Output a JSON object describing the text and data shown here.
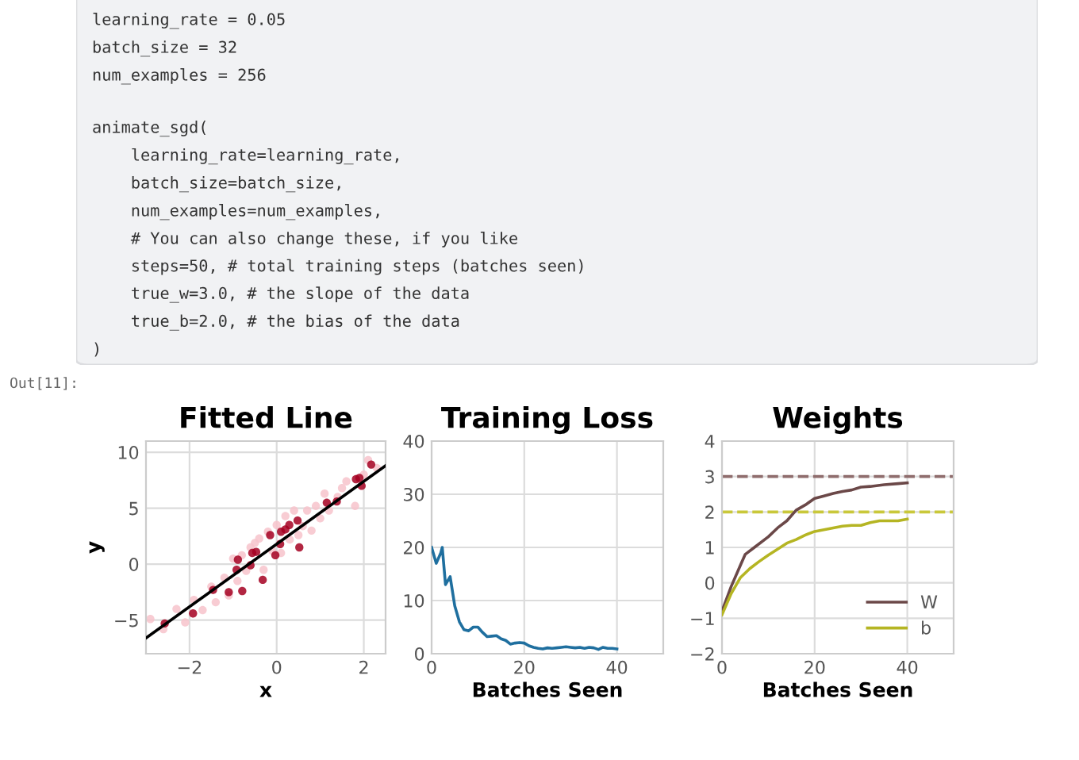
{
  "chart_data": [
    {
      "type": "other",
      "annotations": [
        "learning_rate = 0.05\nbatch_size = 32\nnum_examples = 256",
        "animate_sgd(\n    learning_rate=learning_rate,\n    batch_size=batch_size,\n    num_examples=num_examples,\n    # You can also change these, if you like\n    steps=50, # total training steps (batches seen)\n    true_w=3.0, # the slope of the data\n    true_b=2.0, # the bias of the data\n)"
      ]
    },
    {
      "type": "scatter",
      "title": "Fitted Line",
      "xlabel": "x",
      "ylabel": "y",
      "annotations": [
        "Out[11]:"
      ],
      "xlim": [
        -3,
        2.5
      ],
      "ylim": [
        -8,
        11
      ],
      "xticks": [
        -2,
        0,
        2
      ],
      "yticks": [
        -5,
        0,
        5,
        10
      ],
      "grid": true,
      "legend": false,
      "marker": "circle",
      "series": [
        {
          "color": "#f7c3cb",
          "x": [
            -2.9,
            -2.6,
            -2.3,
            -2.1,
            -1.9,
            -1.7,
            -1.5,
            -1.4,
            -1.2,
            -1.1,
            -1.0,
            -0.9,
            -0.8,
            -0.7,
            -0.6,
            -0.5,
            -0.4,
            -0.3,
            -0.2,
            -0.1,
            0.0,
            0.1,
            0.2,
            0.3,
            0.4,
            0.5,
            0.6,
            0.7,
            0.8,
            0.9,
            1.0,
            1.1,
            1.2,
            1.4,
            1.5,
            1.6,
            1.8,
            2.0,
            2.1,
            2.3
          ],
          "values": [
            -4.9,
            -5.8,
            -4.0,
            -5.2,
            -3.2,
            -4.1,
            -2.0,
            -3.4,
            -1.2,
            -2.8,
            0.5,
            -1.5,
            0.8,
            -0.6,
            1.5,
            1.9,
            2.3,
            -0.5,
            2.9,
            1.2,
            3.5,
            1.0,
            4.3,
            2.2,
            4.8,
            2.6,
            3.4,
            4.8,
            3.0,
            5.2,
            4.1,
            6.3,
            4.8,
            6.0,
            6.8,
            7.4,
            5.2,
            8.0,
            9.3,
            8.6
          ]
        },
        {
          "color": "#a50021",
          "x": [
            2.17,
            1.9,
            1.95,
            1.82,
            1.15,
            1.38,
            0.48,
            0.29,
            0.2,
            0.1,
            -0.15,
            0.08,
            0.52,
            -0.03,
            -0.47,
            -0.56,
            -0.32,
            -0.89,
            -0.92,
            -0.79,
            -1.1,
            -1.46,
            -1.92,
            -2.57,
            -0.6
          ],
          "values": [
            8.9,
            7.7,
            7.0,
            7.6,
            5.5,
            5.6,
            3.9,
            3.5,
            3.1,
            2.9,
            2.6,
            1.8,
            1.5,
            0.8,
            1.1,
            1.0,
            -1.4,
            0.4,
            -0.5,
            -2.4,
            -2.5,
            -2.3,
            -4.4,
            -5.3,
            -0.1
          ]
        },
        {
          "type": "line",
          "marker": "none",
          "color": "#000000",
          "x": [
            -3,
            2.5
          ],
          "values": [
            -6.6,
            8.8
          ]
        }
      ]
    },
    {
      "type": "line",
      "title": "Training Loss",
      "xlabel": "Batches Seen",
      "xlim": [
        0,
        50
      ],
      "ylim": [
        0,
        40
      ],
      "xticks": [
        0,
        20,
        40
      ],
      "yticks": [
        0,
        10,
        20,
        30,
        40
      ],
      "grid": true,
      "legend": false,
      "marker": "none",
      "line_style": "solid",
      "series": [
        {
          "color": "#1f6f9f",
          "x": [
            0,
            1,
            2,
            2.3,
            3,
            4,
            5,
            6,
            7,
            8,
            9,
            10,
            11,
            12,
            13,
            14,
            15,
            16,
            17,
            18,
            19,
            20,
            21,
            22,
            23,
            24,
            25,
            26,
            27,
            28,
            29,
            30,
            31,
            32,
            33,
            34,
            35,
            36,
            37,
            38,
            39,
            40
          ],
          "values": [
            20,
            17,
            19,
            20,
            13,
            14.5,
            9,
            6,
            4.5,
            4.3,
            5,
            5,
            4,
            3.2,
            3.3,
            3.4,
            2.8,
            2.5,
            1.8,
            2,
            2.1,
            2,
            1.5,
            1.2,
            1,
            0.9,
            1.1,
            1,
            1.1,
            1.2,
            1.3,
            1.2,
            1.1,
            1.2,
            1,
            1.2,
            1.1,
            0.8,
            1.2,
            1,
            1,
            0.9
          ]
        }
      ]
    },
    {
      "type": "line",
      "title": "Weights",
      "xlabel": "Batches Seen",
      "xlim": [
        0,
        50
      ],
      "ylim": [
        -2,
        4
      ],
      "xticks": [
        0,
        20,
        40
      ],
      "yticks": [
        -2,
        -1,
        0,
        1,
        2,
        3,
        4
      ],
      "grid": true,
      "legend": "bottom right",
      "marker": "none",
      "line_style": "solid",
      "ref_lines": [
        {
          "axis": "y",
          "value": 3,
          "color": "#8f6d6d",
          "line_style": "dashed"
        },
        {
          "axis": "y",
          "value": 2,
          "color": "#c9c83a",
          "line_style": "dashed"
        }
      ],
      "series": [
        {
          "name": "W",
          "color": "#6b4848",
          "x": [
            0,
            2,
            4,
            5,
            7,
            10,
            12,
            14,
            16,
            18,
            20,
            22,
            24,
            26,
            28,
            30,
            32,
            35,
            38,
            40
          ],
          "values": [
            -0.8,
            -0.1,
            0.5,
            0.8,
            1.0,
            1.3,
            1.55,
            1.75,
            2.05,
            2.2,
            2.38,
            2.45,
            2.52,
            2.58,
            2.62,
            2.7,
            2.72,
            2.77,
            2.8,
            2.82
          ]
        },
        {
          "name": "b",
          "color": "#b5b523",
          "x": [
            0,
            2,
            4,
            6,
            8,
            10,
            12,
            14,
            16,
            18,
            20,
            22,
            24,
            26,
            28,
            30,
            32,
            34,
            36,
            38,
            40
          ],
          "values": [
            -0.9,
            -0.3,
            0.15,
            0.4,
            0.6,
            0.78,
            0.95,
            1.12,
            1.22,
            1.35,
            1.45,
            1.5,
            1.55,
            1.6,
            1.62,
            1.62,
            1.7,
            1.75,
            1.75,
            1.75,
            1.8
          ]
        }
      ]
    }
  ]
}
